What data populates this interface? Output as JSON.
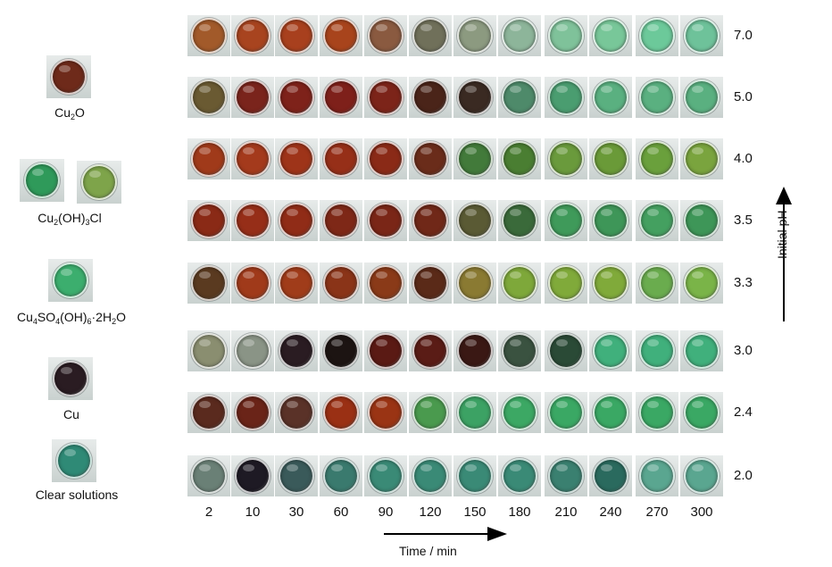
{
  "references": [
    {
      "label": "Cu₂O",
      "colors": [
        "#6e2a1a"
      ]
    },
    {
      "label": "Cu₂(OH)₃Cl",
      "colors": [
        "#2f9a5a",
        "#7ea44a"
      ]
    },
    {
      "label": "Cu₄SO₄(OH)₆·2H₂O",
      "colors": [
        "#3cae6e"
      ]
    },
    {
      "label": "Cu",
      "colors": [
        "#2a1c22"
      ]
    },
    {
      "label": "Clear solutions",
      "colors": [
        "#2f8a76"
      ]
    }
  ],
  "ph_axis_title": "Initial pH",
  "time_axis_title": "Time / min",
  "time_labels": [
    "2",
    "10",
    "30",
    "60",
    "90",
    "120",
    "150",
    "180",
    "210",
    "240",
    "270",
    "300"
  ],
  "rows": [
    {
      "ph": "7.0",
      "colors": [
        "#a25a2a",
        "#a8441f",
        "#a8401e",
        "#a8441c",
        "#8a5a40",
        "#70705a",
        "#8c9a80",
        "#8db59a",
        "#7fc29a",
        "#78c799",
        "#6cc99a",
        "#6ec29a"
      ]
    },
    {
      "ph": "5.0",
      "colors": [
        "#6a5a32",
        "#7a241c",
        "#7e221a",
        "#7e201a",
        "#7c2419",
        "#4a2419",
        "#3a2a22",
        "#4e8a6a",
        "#4a9d70",
        "#5ab080",
        "#5ab080",
        "#5ab080"
      ]
    },
    {
      "ph": "4.0",
      "colors": [
        "#a03a1a",
        "#a43a1c",
        "#9e3419",
        "#962f18",
        "#8a2a17",
        "#6a2c1a",
        "#427a3a",
        "#4a7e32",
        "#6a9a3c",
        "#6a9a38",
        "#6aa03c",
        "#7aa43e"
      ]
    },
    {
      "ph": "3.5",
      "colors": [
        "#8a2a16",
        "#962e18",
        "#902c17",
        "#7e2817",
        "#7a2617",
        "#702818",
        "#5a5a34",
        "#3a6a3a",
        "#3f9a5a",
        "#3e9658",
        "#44a060",
        "#3e9658"
      ]
    },
    {
      "ph": "3.3",
      "colors": [
        "#5a3a20",
        "#a03a1a",
        "#a03c1a",
        "#8a3418",
        "#8a3a18",
        "#5a2a18",
        "#8a7a32",
        "#7ea83a",
        "#80aa3a",
        "#80aa3a",
        "#6aac4e",
        "#7ab448"
      ]
    },
    {
      "ph": "3.0",
      "colors": [
        "#8a8e70",
        "#8a9486",
        "#2a1c22",
        "#1c1412",
        "#5a1a14",
        "#5a1c16",
        "#3a1814",
        "#3a5240",
        "#2a4a36",
        "#40b07c",
        "#40b07c",
        "#40b07c"
      ]
    },
    {
      "ph": "2.4",
      "colors": [
        "#5a2a1e",
        "#6a2418",
        "#5a3228",
        "#9a3014",
        "#9a3414",
        "#4a9a4e",
        "#3ca264",
        "#3ca864",
        "#3aa864",
        "#3aa864",
        "#3aa864",
        "#3aa864"
      ]
    },
    {
      "ph": "2.0",
      "colors": [
        "#6a8076",
        "#1e1a24",
        "#3a5a5a",
        "#3a7a6e",
        "#3a8a76",
        "#3a8a76",
        "#3a8a76",
        "#3a8a76",
        "#3a8070",
        "#2a6a5e",
        "#5aa690",
        "#5aa690"
      ]
    }
  ]
}
